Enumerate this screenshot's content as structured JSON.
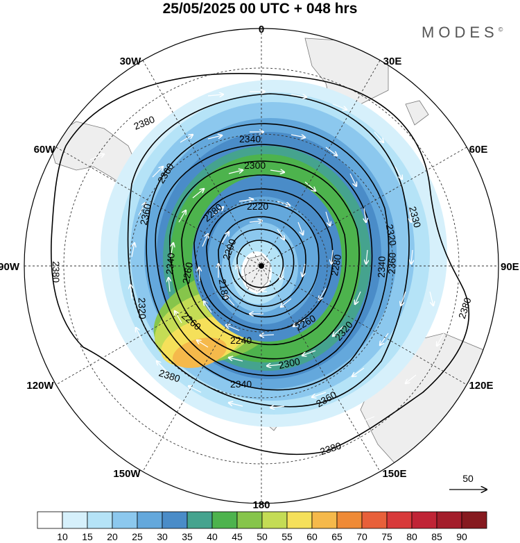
{
  "title": "25/05/2025  00 UTC  + 048 hrs",
  "brand": "MODES",
  "brand_mark": "©",
  "longitude_labels": {
    "top": "0",
    "bottom": "180",
    "left": "90W",
    "right": "90E",
    "n30w": "30W",
    "n30e": "30E",
    "n60w": "60W",
    "n60e": "60E",
    "s120w": "120W",
    "s120e": "120E",
    "s150w": "150W",
    "s150e": "150E"
  },
  "contour_labels": [
    "2380",
    "2380",
    "2380",
    "2380",
    "2380",
    "2360",
    "2360",
    "2360",
    "2360",
    "2340",
    "2340",
    "2340",
    "2340",
    "2320",
    "2330",
    "2300",
    "2300",
    "2280",
    "2280",
    "2260",
    "2260",
    "2260",
    "2240",
    "2220",
    "2200",
    "2180",
    "2320",
    "2320"
  ],
  "wind_reference": "50",
  "colorbar": {
    "ticks": [
      "10",
      "15",
      "20",
      "25",
      "30",
      "35",
      "40",
      "45",
      "50",
      "55",
      "60",
      "65",
      "70",
      "75",
      "80",
      "85",
      "90"
    ],
    "colors": [
      "#ffffff",
      "#d6f0fb",
      "#b5e3f7",
      "#8cc8ee",
      "#64a8dc",
      "#4a8cc8",
      "#45a38e",
      "#4db34d",
      "#86c54b",
      "#c4dc55",
      "#f5e05a",
      "#f5b94b",
      "#ef8a36",
      "#e8603a",
      "#d8393a",
      "#c02436",
      "#a31d2b",
      "#861a1f"
    ]
  },
  "colors": {
    "land": "#eeeeee",
    "coast": "#666666",
    "contour": "#000000",
    "vector": "#ffffff"
  }
}
